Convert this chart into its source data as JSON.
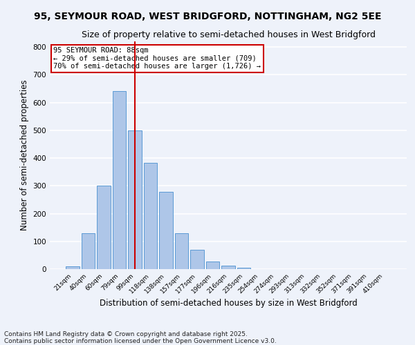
{
  "title1": "95, SEYMOUR ROAD, WEST BRIDGFORD, NOTTINGHAM, NG2 5EE",
  "title2": "Size of property relative to semi-detached houses in West Bridgford",
  "xlabel": "Distribution of semi-detached houses by size in West Bridgford",
  "ylabel": "Number of semi-detached properties",
  "footnote": "Contains HM Land Registry data © Crown copyright and database right 2025.\nContains public sector information licensed under the Open Government Licence v3.0.",
  "bar_labels": [
    "21sqm",
    "40sqm",
    "60sqm",
    "79sqm",
    "99sqm",
    "118sqm",
    "138sqm",
    "157sqm",
    "177sqm",
    "196sqm",
    "216sqm",
    "235sqm",
    "254sqm",
    "274sqm",
    "293sqm",
    "313sqm",
    "332sqm",
    "352sqm",
    "371sqm",
    "391sqm",
    "410sqm"
  ],
  "bar_values": [
    10,
    130,
    300,
    640,
    500,
    383,
    278,
    130,
    70,
    28,
    13,
    5,
    0,
    0,
    0,
    0,
    0,
    0,
    0,
    0,
    0
  ],
  "bar_color": "#aec6e8",
  "bar_edgecolor": "#5b9bd5",
  "vline_x": 4.0,
  "vline_color": "#cc0000",
  "annotation_text": "95 SEYMOUR ROAD: 88sqm\n← 29% of semi-detached houses are smaller (709)\n70% of semi-detached houses are larger (1,726) →",
  "annotation_box_edgecolor": "#cc0000",
  "ylim": [
    0,
    820
  ],
  "yticks": [
    0,
    100,
    200,
    300,
    400,
    500,
    600,
    700,
    800
  ],
  "background_color": "#eef2fa",
  "grid_color": "#ffffff",
  "title1_fontsize": 10,
  "title2_fontsize": 9,
  "xlabel_fontsize": 8.5,
  "ylabel_fontsize": 8.5,
  "footnote_fontsize": 6.5,
  "annotation_fontsize": 7.5
}
